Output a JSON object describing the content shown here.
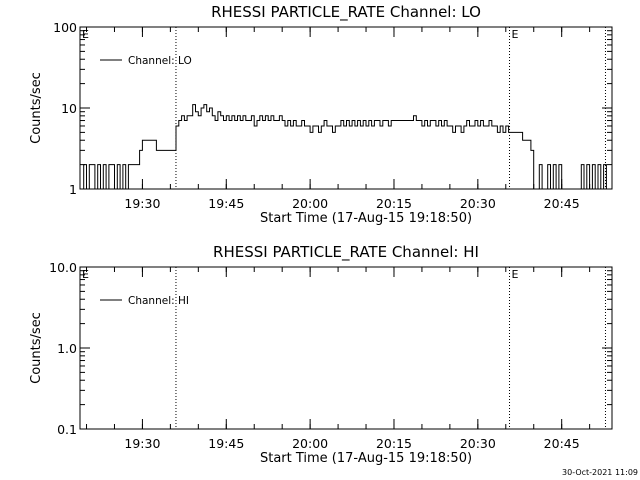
{
  "footer": {
    "timestamp": "30-Oct-2021 11:09"
  },
  "colors": {
    "background": "#ffffff",
    "foreground": "#000000"
  },
  "chart_data": [
    {
      "type": "line",
      "title": "RHESSI PARTICLE_RATE Channel: LO",
      "xlabel": "Start Time (17-Aug-15 19:18:50)",
      "ylabel": "Counts/sec",
      "yscale": "log",
      "ylim": [
        1,
        100
      ],
      "yticks": [
        1,
        10,
        100
      ],
      "ytick_labels": [
        "1",
        "10",
        "100"
      ],
      "xlim": [
        "19:18:50",
        "20:54:00"
      ],
      "xticks": [
        "19:30",
        "19:45",
        "20:00",
        "20:15",
        "20:30",
        "20:45"
      ],
      "grid": false,
      "legend": "top-left",
      "vlines": [
        {
          "x": "19:36:00",
          "label": ""
        },
        {
          "x": "20:35:40",
          "label": "E"
        },
        {
          "x": "20:52:50",
          "label": ""
        }
      ],
      "start_marker": "E",
      "series": [
        {
          "name": "Channel: LO",
          "points": [
            [
              "19:19:00",
              1
            ],
            [
              "19:19:30",
              2
            ],
            [
              "19:20:00",
              1
            ],
            [
              "19:20:30",
              2
            ],
            [
              "19:21:00",
              2
            ],
            [
              "19:21:30",
              1
            ],
            [
              "19:22:00",
              2
            ],
            [
              "19:22:30",
              1
            ],
            [
              "19:23:00",
              2
            ],
            [
              "19:23:30",
              1
            ],
            [
              "19:24:00",
              2
            ],
            [
              "19:24:30",
              2
            ],
            [
              "19:25:00",
              1
            ],
            [
              "19:25:30",
              2
            ],
            [
              "19:26:00",
              1
            ],
            [
              "19:26:30",
              2
            ],
            [
              "19:27:00",
              1
            ],
            [
              "19:27:30",
              2
            ],
            [
              "19:28:00",
              2
            ],
            [
              "19:28:30",
              2
            ],
            [
              "19:29:00",
              2
            ],
            [
              "19:29:30",
              3
            ],
            [
              "19:30:00",
              4
            ],
            [
              "19:30:30",
              4
            ],
            [
              "19:31:00",
              4
            ],
            [
              "19:31:30",
              4
            ],
            [
              "19:32:00",
              4
            ],
            [
              "19:32:30",
              3
            ],
            [
              "19:33:00",
              3
            ],
            [
              "19:33:30",
              3
            ],
            [
              "19:34:00",
              3
            ],
            [
              "19:34:30",
              3
            ],
            [
              "19:35:00",
              3
            ],
            [
              "19:35:30",
              3
            ],
            [
              "19:36:00",
              6
            ],
            [
              "19:36:30",
              7
            ],
            [
              "19:37:00",
              8
            ],
            [
              "19:37:30",
              7
            ],
            [
              "19:38:00",
              8
            ],
            [
              "19:38:30",
              8
            ],
            [
              "19:39:00",
              11
            ],
            [
              "19:39:30",
              9
            ],
            [
              "19:40:00",
              8
            ],
            [
              "19:40:30",
              10
            ],
            [
              "19:41:00",
              11
            ],
            [
              "19:41:30",
              9
            ],
            [
              "19:42:00",
              10
            ],
            [
              "19:42:30",
              8
            ],
            [
              "19:43:00",
              7
            ],
            [
              "19:43:30",
              9
            ],
            [
              "19:44:00",
              8
            ],
            [
              "19:44:30",
              7
            ],
            [
              "19:45:00",
              8
            ],
            [
              "19:45:30",
              7
            ],
            [
              "19:46:00",
              8
            ],
            [
              "19:46:30",
              7
            ],
            [
              "19:47:00",
              8
            ],
            [
              "19:47:30",
              7
            ],
            [
              "19:48:00",
              8
            ],
            [
              "19:48:30",
              7
            ],
            [
              "19:49:00",
              7
            ],
            [
              "19:49:30",
              8
            ],
            [
              "19:50:00",
              6
            ],
            [
              "19:50:30",
              7
            ],
            [
              "19:51:00",
              8
            ],
            [
              "19:51:30",
              7
            ],
            [
              "19:52:00",
              8
            ],
            [
              "19:52:30",
              7
            ],
            [
              "19:53:00",
              8
            ],
            [
              "19:53:30",
              7
            ],
            [
              "19:54:00",
              7
            ],
            [
              "19:54:30",
              8
            ],
            [
              "19:55:00",
              7
            ],
            [
              "19:55:30",
              6
            ],
            [
              "19:56:00",
              7
            ],
            [
              "19:56:30",
              6
            ],
            [
              "19:57:00",
              7
            ],
            [
              "19:57:30",
              6
            ],
            [
              "19:58:00",
              6
            ],
            [
              "19:58:30",
              7
            ],
            [
              "19:59:00",
              6
            ],
            [
              "19:59:30",
              6
            ],
            [
              "20:00:00",
              5
            ],
            [
              "20:00:30",
              6
            ],
            [
              "20:01:00",
              6
            ],
            [
              "20:01:30",
              5
            ],
            [
              "20:02:00",
              6
            ],
            [
              "20:02:30",
              7
            ],
            [
              "20:03:00",
              6
            ],
            [
              "20:03:30",
              6
            ],
            [
              "20:04:00",
              5
            ],
            [
              "20:04:30",
              6
            ],
            [
              "20:05:00",
              6
            ],
            [
              "20:05:30",
              7
            ],
            [
              "20:06:00",
              6
            ],
            [
              "20:06:30",
              7
            ],
            [
              "20:07:00",
              6
            ],
            [
              "20:07:30",
              7
            ],
            [
              "20:08:00",
              6
            ],
            [
              "20:08:30",
              7
            ],
            [
              "20:09:00",
              6
            ],
            [
              "20:09:30",
              7
            ],
            [
              "20:10:00",
              6
            ],
            [
              "20:10:30",
              7
            ],
            [
              "20:11:00",
              6
            ],
            [
              "20:11:30",
              7
            ],
            [
              "20:12:00",
              7
            ],
            [
              "20:12:30",
              6
            ],
            [
              "20:13:00",
              7
            ],
            [
              "20:13:30",
              7
            ],
            [
              "20:14:00",
              6
            ],
            [
              "20:14:30",
              7
            ],
            [
              "20:15:00",
              7
            ],
            [
              "20:16:00",
              7
            ],
            [
              "20:17:00",
              7
            ],
            [
              "20:18:00",
              7
            ],
            [
              "20:18:30",
              8
            ],
            [
              "20:19:00",
              7
            ],
            [
              "20:19:30",
              7
            ],
            [
              "20:20:00",
              6
            ],
            [
              "20:20:30",
              7
            ],
            [
              "20:21:00",
              6
            ],
            [
              "20:21:30",
              7
            ],
            [
              "20:22:00",
              7
            ],
            [
              "20:22:30",
              6
            ],
            [
              "20:23:00",
              7
            ],
            [
              "20:23:30",
              6
            ],
            [
              "20:24:00",
              7
            ],
            [
              "20:24:30",
              6
            ],
            [
              "20:25:00",
              6
            ],
            [
              "20:25:30",
              5
            ],
            [
              "20:26:00",
              6
            ],
            [
              "20:26:30",
              6
            ],
            [
              "20:27:00",
              5
            ],
            [
              "20:27:30",
              6
            ],
            [
              "20:28:00",
              7
            ],
            [
              "20:28:30",
              6
            ],
            [
              "20:29:00",
              6
            ],
            [
              "20:29:30",
              7
            ],
            [
              "20:30:00",
              6
            ],
            [
              "20:30:30",
              7
            ],
            [
              "20:31:00",
              6
            ],
            [
              "20:31:30",
              6
            ],
            [
              "20:32:00",
              7
            ],
            [
              "20:32:30",
              6
            ],
            [
              "20:33:00",
              6
            ],
            [
              "20:33:30",
              5
            ],
            [
              "20:34:00",
              6
            ],
            [
              "20:34:30",
              5
            ],
            [
              "20:35:00",
              6
            ],
            [
              "20:35:30",
              5
            ],
            [
              "20:36:00",
              5
            ],
            [
              "20:37:00",
              5
            ],
            [
              "20:38:00",
              4
            ],
            [
              "20:38:30",
              4
            ],
            [
              "20:39:00",
              4
            ],
            [
              "20:39:30",
              3
            ],
            [
              "20:40:00",
              1
            ],
            [
              "20:40:30",
              1
            ],
            [
              "20:41:00",
              2
            ],
            [
              "20:41:30",
              1
            ],
            [
              "20:42:00",
              1
            ],
            [
              "20:42:30",
              2
            ],
            [
              "20:43:00",
              1
            ],
            [
              "20:43:30",
              2
            ],
            [
              "20:44:00",
              1
            ],
            [
              "20:44:30",
              2
            ],
            [
              "20:45:00",
              1
            ],
            [
              "20:45:30",
              1
            ],
            [
              "20:46:00",
              1
            ],
            [
              "20:46:30",
              1
            ],
            [
              "20:47:00",
              1
            ],
            [
              "20:47:30",
              1
            ],
            [
              "20:48:00",
              1
            ],
            [
              "20:48:30",
              2
            ],
            [
              "20:49:00",
              1
            ],
            [
              "20:49:30",
              2
            ],
            [
              "20:50:00",
              1
            ],
            [
              "20:50:30",
              2
            ],
            [
              "20:51:00",
              1
            ],
            [
              "20:51:30",
              2
            ],
            [
              "20:52:00",
              1
            ],
            [
              "20:52:30",
              2
            ],
            [
              "20:53:00",
              1
            ]
          ]
        }
      ]
    },
    {
      "type": "line",
      "title": "RHESSI PARTICLE_RATE Channel: HI",
      "xlabel": "Start Time (17-Aug-15 19:18:50)",
      "ylabel": "Counts/sec",
      "yscale": "log",
      "ylim": [
        0.1,
        10
      ],
      "yticks": [
        0.1,
        1,
        10
      ],
      "ytick_labels": [
        "0.1",
        "1.0",
        "10.0"
      ],
      "xlim": [
        "19:18:50",
        "20:54:00"
      ],
      "xticks": [
        "19:30",
        "19:45",
        "20:00",
        "20:15",
        "20:30",
        "20:45"
      ],
      "grid": false,
      "legend": "top-left",
      "vlines": [
        {
          "x": "19:36:00",
          "label": ""
        },
        {
          "x": "20:35:40",
          "label": "E"
        },
        {
          "x": "20:52:50",
          "label": ""
        }
      ],
      "start_marker": "E",
      "series": [
        {
          "name": "Channel: HI",
          "points": []
        }
      ]
    }
  ]
}
